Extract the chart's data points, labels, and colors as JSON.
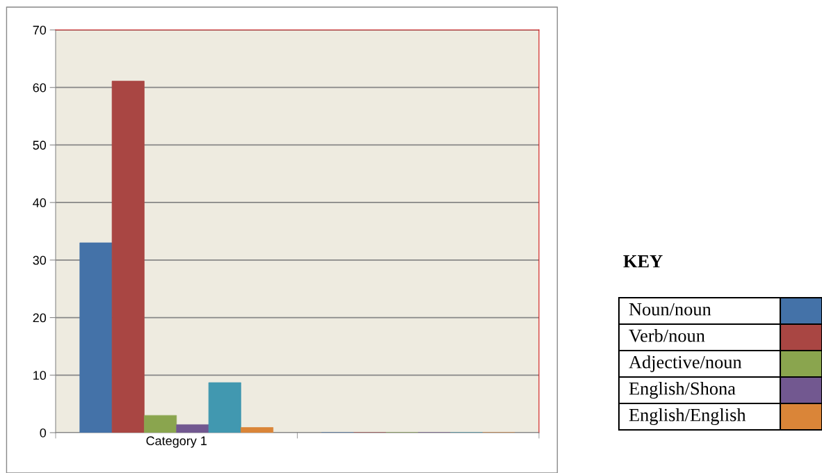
{
  "chart_data": {
    "type": "bar",
    "categories": [
      "Category 1",
      null
    ],
    "series": [
      {
        "name": "Noun/noun",
        "color": "#4472a8",
        "values": [
          33.0,
          0
        ]
      },
      {
        "name": "Verb/noun",
        "color": "#a94643",
        "values": [
          61.1,
          0
        ]
      },
      {
        "name": "Adjective/noun",
        "color": "#8aa54e",
        "values": [
          3.0,
          0
        ]
      },
      {
        "name": "English/Shona",
        "color": "#725890",
        "values": [
          1.4,
          0
        ]
      },
      {
        "color": "#4198b0",
        "values": [
          8.7,
          0
        ]
      },
      {
        "name": "English/English",
        "color": "#da8538",
        "values": [
          0.9,
          0
        ]
      }
    ],
    "ylim": [
      0,
      70
    ],
    "yticks": [
      0,
      10,
      20,
      30,
      40,
      50,
      60,
      70
    ],
    "grid": "y",
    "legend": "right",
    "legend_title": "KEY"
  }
}
